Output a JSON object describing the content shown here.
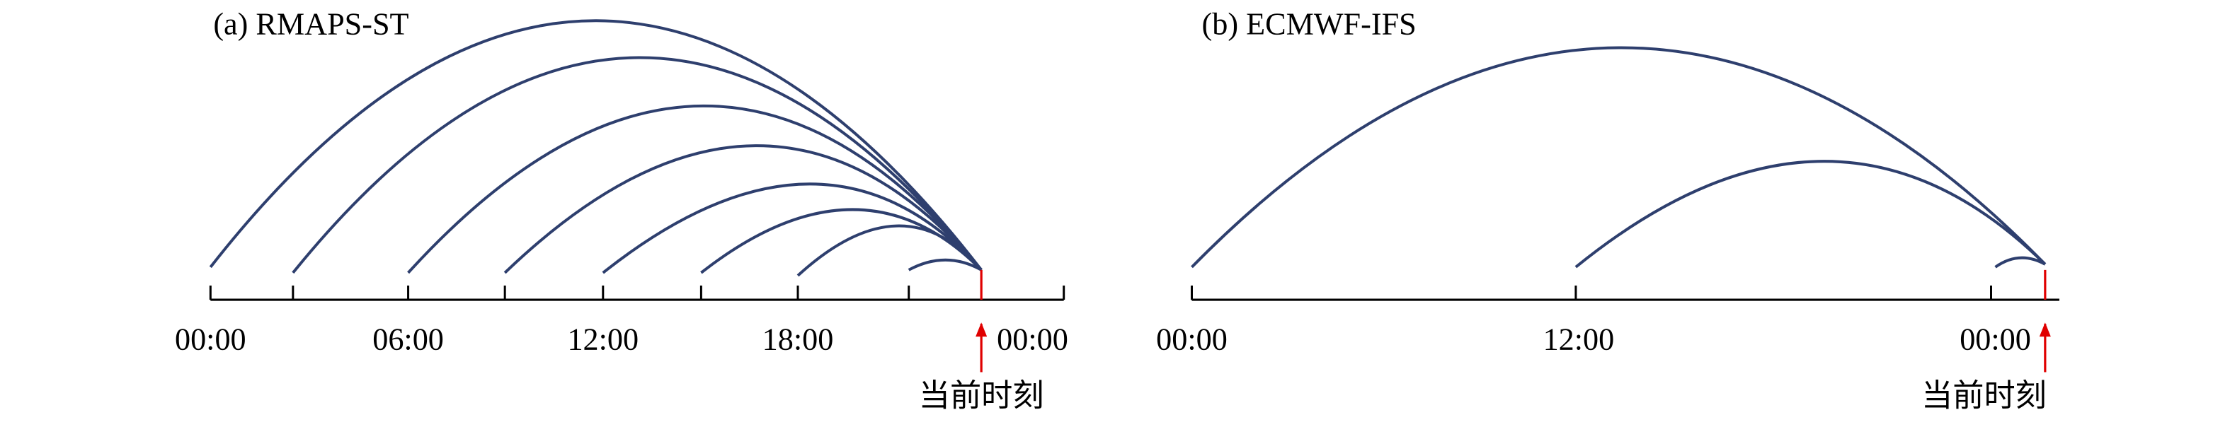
{
  "panels": [
    {
      "title": "(a) RMAPS-ST",
      "tick_labels": [
        "00:00",
        "06:00",
        "12:00",
        "18:00",
        "00:00"
      ],
      "marker": "当前时刻"
    },
    {
      "title": "(b) ECMWF-IFS",
      "tick_labels": [
        "00:00",
        "12:00",
        "00:00"
      ],
      "marker": "当前时刻"
    }
  ]
}
